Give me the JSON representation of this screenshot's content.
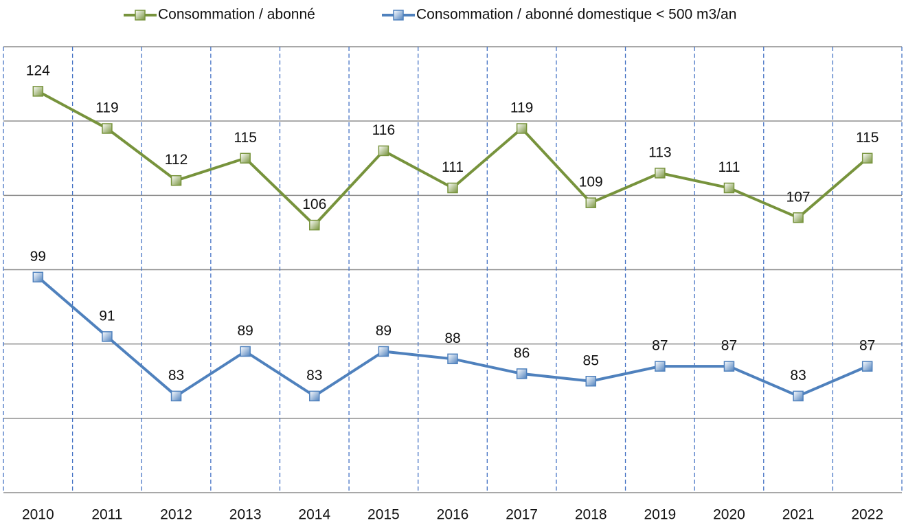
{
  "chart_data": {
    "type": "line",
    "categories": [
      "2010",
      "2011",
      "2012",
      "2013",
      "2014",
      "2015",
      "2016",
      "2017",
      "2018",
      "2019",
      "2020",
      "2021",
      "2022"
    ],
    "series": [
      {
        "name": "Consommation / abonné",
        "color": "#77933c",
        "values": [
          124,
          119,
          112,
          115,
          106,
          116,
          111,
          119,
          109,
          113,
          111,
          107,
          115
        ]
      },
      {
        "name": "Consommation / abonné domestique < 500 m3/an",
        "color": "#4f81bd",
        "values": [
          99,
          91,
          83,
          89,
          83,
          89,
          88,
          86,
          85,
          87,
          87,
          83,
          87
        ]
      }
    ],
    "ylim": [
      70,
      130
    ],
    "yticks": [
      70,
      80,
      90,
      100,
      110,
      120,
      130
    ],
    "grid": true,
    "legend": "top"
  }
}
